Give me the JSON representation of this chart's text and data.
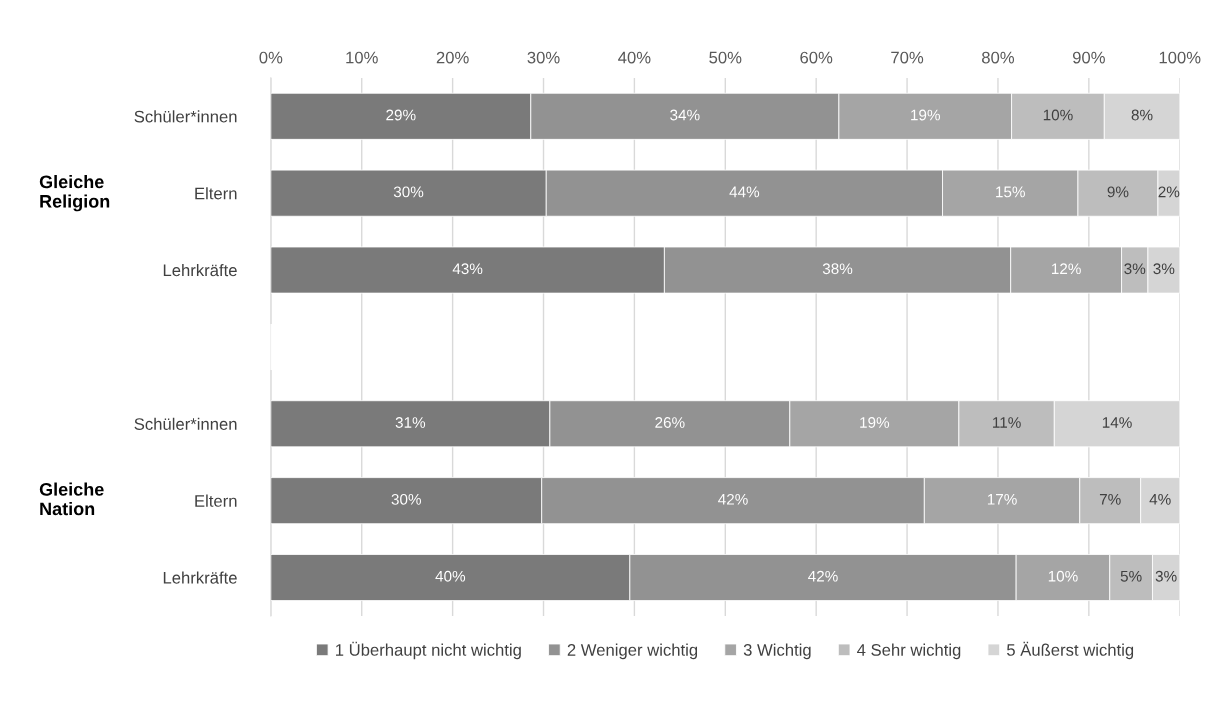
{
  "chart_data": {
    "type": "bar",
    "orientation": "horizontal",
    "stacked": true,
    "categories": [
      "Schüler*innen",
      "Eltern",
      "Lehrkräfte",
      null,
      "Schüler*innen",
      "Eltern",
      "Lehrkräfte"
    ],
    "series": [
      {
        "name": "1 Überhaupt nicht wichtig",
        "color": "#7a7a7a",
        "values": [
          28.6,
          30.3,
          43.3,
          null,
          30.7,
          29.8,
          39.5
        ],
        "value_labels": [
          "29%",
          "30%",
          "43%",
          null,
          "31%",
          "30%",
          "40%"
        ]
      },
      {
        "name": "2 Weniger wichtig",
        "color": "#929292",
        "values": [
          33.9,
          43.6,
          38.1,
          null,
          26.4,
          42.1,
          42.5
        ],
        "value_labels": [
          "34%",
          "44%",
          "38%",
          null,
          "26%",
          "42%",
          "42%"
        ]
      },
      {
        "name": "3 Wichtig",
        "color": "#a5a5a5",
        "values": [
          19.0,
          14.9,
          12.2,
          null,
          18.6,
          17.1,
          10.3
        ],
        "value_labels": [
          "19%",
          "15%",
          "12%",
          null,
          "19%",
          "17%",
          "10%"
        ]
      },
      {
        "name": "4 Sehr wichtig",
        "color": "#bdbdbd",
        "values": [
          10.2,
          8.8,
          2.9,
          null,
          10.5,
          6.7,
          4.7
        ],
        "value_labels": [
          "10%",
          "9%",
          "3%",
          null,
          "11%",
          "7%",
          "5%"
        ]
      },
      {
        "name": "5 Äußerst wichtig",
        "color": "#d5d5d5",
        "values": [
          8.3,
          2.4,
          3.5,
          null,
          13.8,
          4.3,
          3.0
        ],
        "value_labels": [
          "8%",
          "2%",
          "3%",
          null,
          "14%",
          "4%",
          "3%"
        ]
      }
    ],
    "xlim": [
      0,
      100
    ],
    "xticks": [
      {
        "value": 0,
        "label": "0%"
      },
      {
        "value": 10,
        "label": "10%"
      },
      {
        "value": 20,
        "label": "20%"
      },
      {
        "value": 30,
        "label": "30%"
      },
      {
        "value": 40,
        "label": "40%"
      },
      {
        "value": 50,
        "label": "50%"
      },
      {
        "value": 60,
        "label": "60%"
      },
      {
        "value": 70,
        "label": "70%"
      },
      {
        "value": 80,
        "label": "80%"
      },
      {
        "value": 90,
        "label": "90%"
      },
      {
        "value": 100,
        "label": "100%"
      }
    ],
    "grid": "x",
    "legend": "bottom",
    "annotations": [
      "Gleiche\nReligion",
      "Gleiche\nNation"
    ]
  }
}
